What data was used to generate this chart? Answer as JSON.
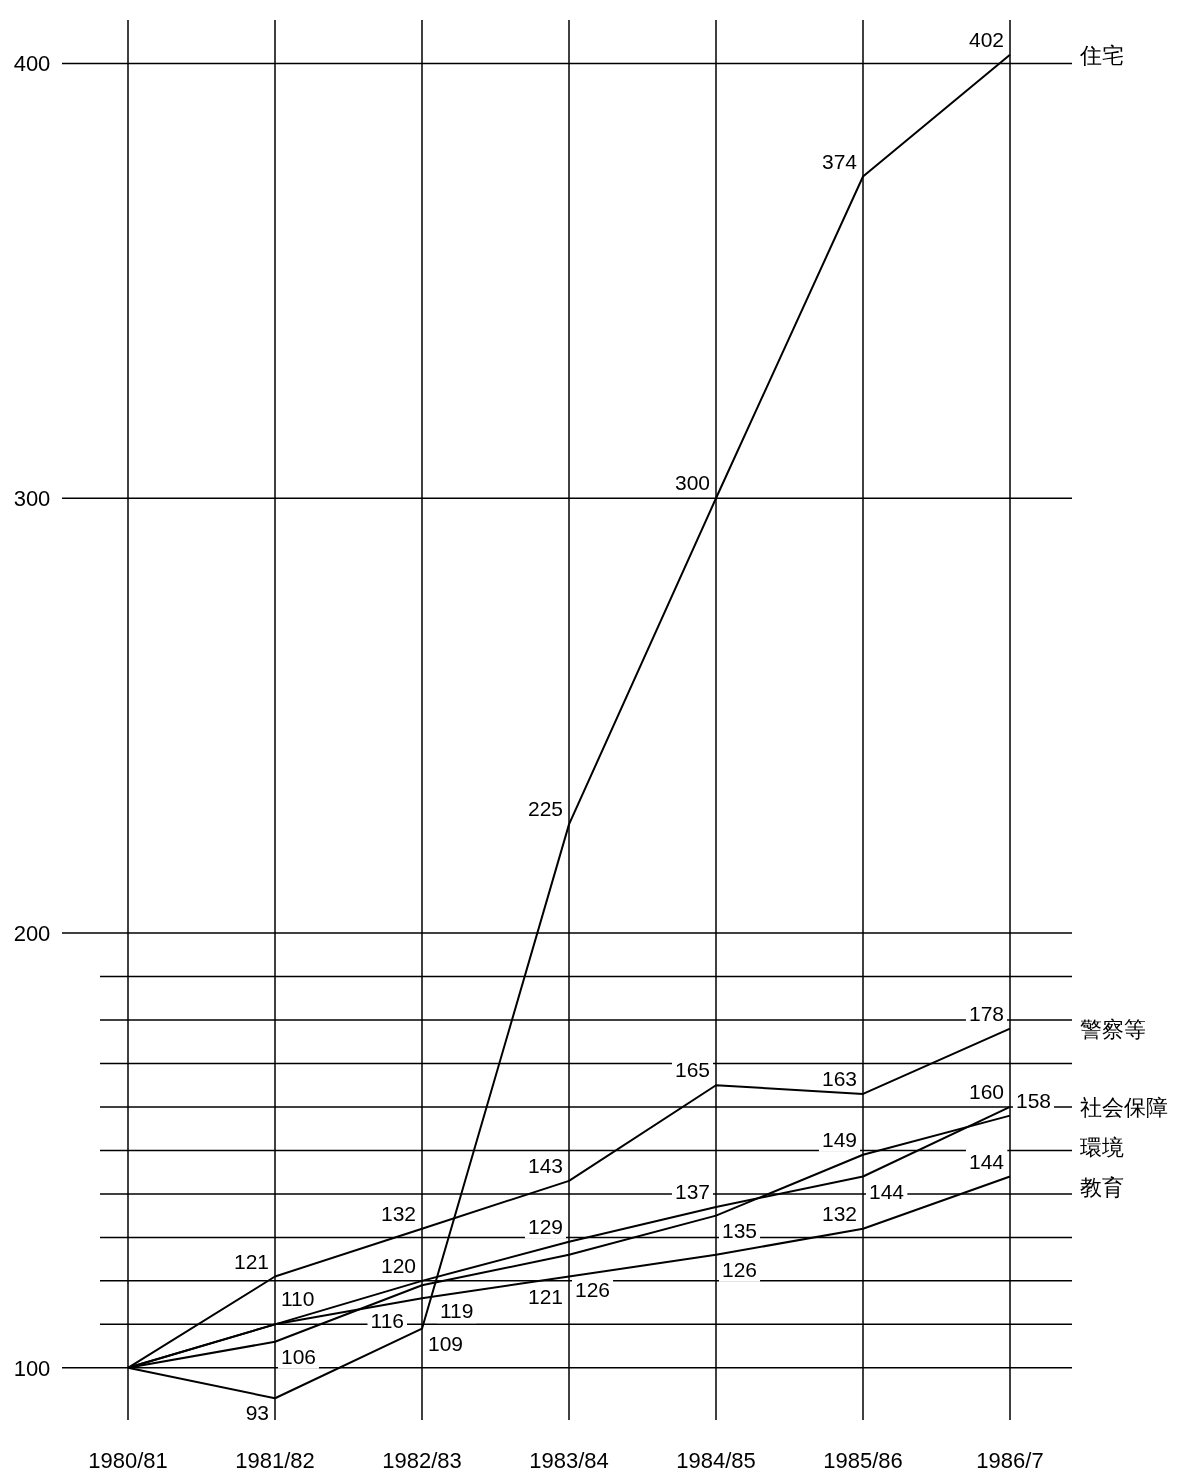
{
  "chart_data": {
    "type": "line",
    "categories": [
      "1980/81",
      "1981/82",
      "1982/83",
      "1983/84",
      "1984/85",
      "1985/86",
      "1986/7"
    ],
    "ylim": [
      88,
      410
    ],
    "yticks": [
      100,
      {
        "value": 110,
        "label": null
      },
      {
        "value": 120,
        "label": null
      },
      {
        "value": 130,
        "label": null
      },
      {
        "value": 140,
        "label": null
      },
      {
        "value": 150,
        "label": null
      },
      {
        "value": 160,
        "label": null
      },
      {
        "value": 170,
        "label": null
      },
      {
        "value": 180,
        "label": null
      },
      {
        "value": 190,
        "label": null
      },
      200,
      300,
      400
    ],
    "grid": true,
    "legend": false,
    "marker": "none",
    "line_style": "solid",
    "series": [
      {
        "name": "住宅",
        "color": "#000000",
        "values": [
          100,
          93,
          109,
          225,
          300,
          374,
          402
        ],
        "value_labels": [
          null,
          "93",
          "109",
          "225",
          "300",
          "374",
          "402"
        ]
      },
      {
        "name": "警察等",
        "color": "#000000",
        "values": [
          100,
          121,
          132,
          143,
          165,
          163,
          178
        ],
        "value_labels": [
          null,
          "121",
          "132",
          "143",
          "165",
          "163",
          "178"
        ]
      },
      {
        "name": "社会保障",
        "color": "#000000",
        "values": [
          100,
          110,
          120,
          129,
          137,
          144,
          160
        ],
        "value_labels": [
          null,
          "110",
          "120",
          "129",
          "137",
          "144",
          "160"
        ]
      },
      {
        "name": "環境",
        "color": "#000000",
        "values": [
          100,
          106,
          119,
          126,
          135,
          149,
          158
        ],
        "value_labels": [
          null,
          "106",
          "119",
          "126",
          "135",
          "149",
          "158"
        ]
      },
      {
        "name": "教育",
        "color": "#000000",
        "values": [
          100,
          110,
          116,
          121,
          126,
          132,
          144
        ],
        "value_labels": [
          null,
          null,
          "116",
          "121",
          "126",
          "132",
          "144"
        ]
      }
    ]
  }
}
